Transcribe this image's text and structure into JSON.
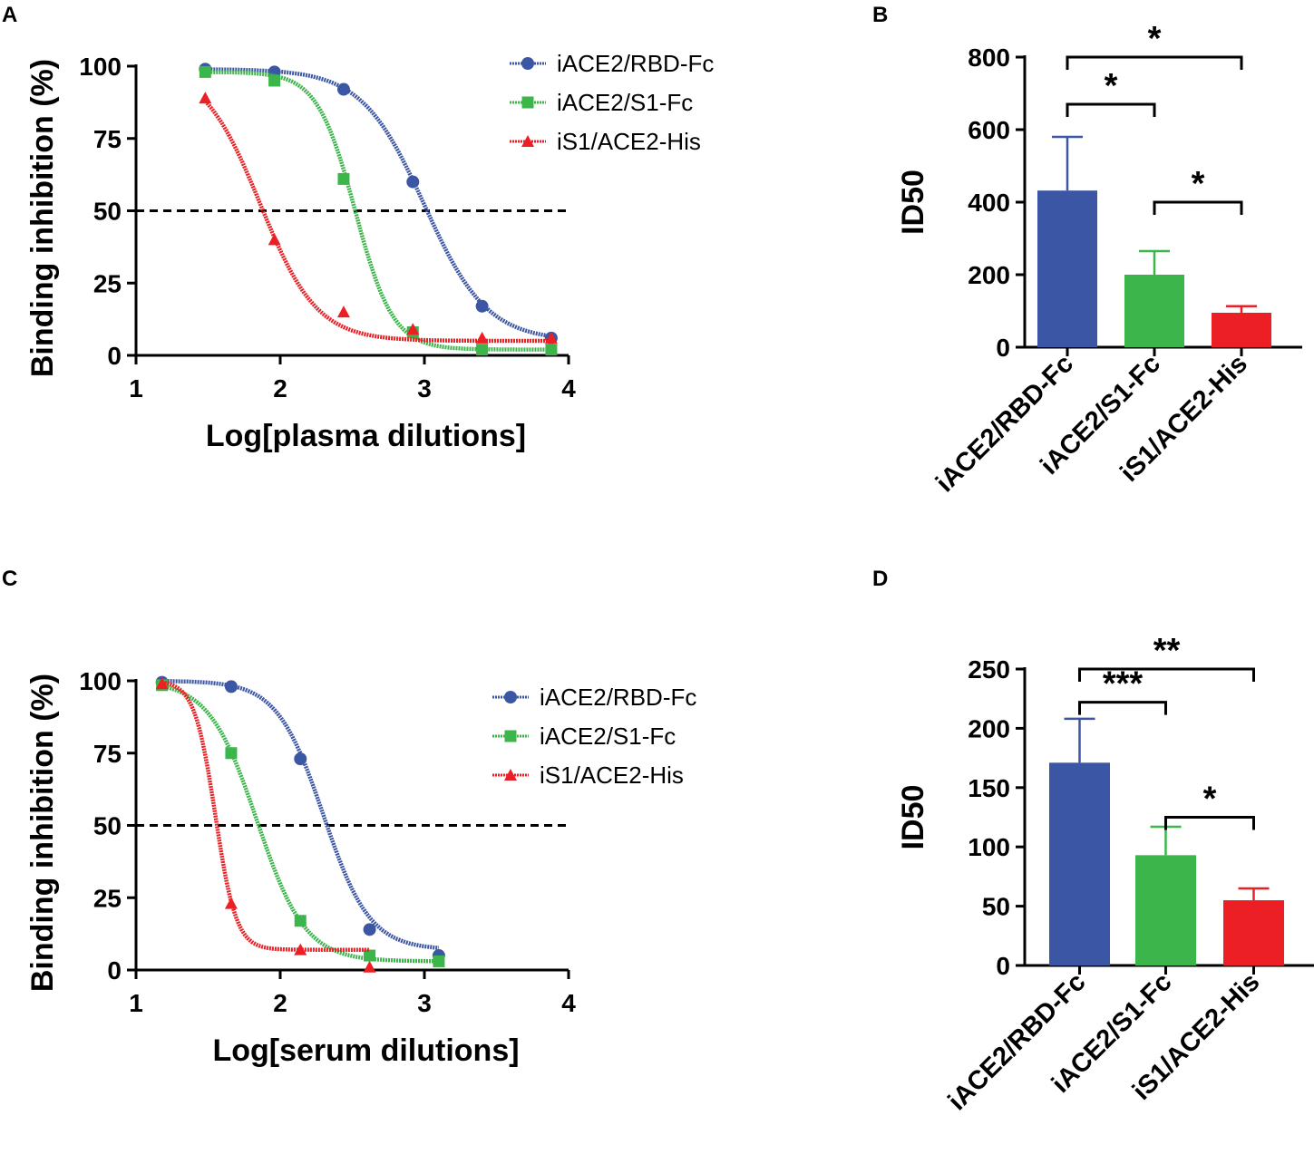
{
  "figure": {
    "colors": {
      "blue": "#3b56a5",
      "green": "#3cb54a",
      "red": "#ec2024"
    },
    "legend_markers": [
      "circle-marker",
      "square-marker",
      "triangle-marker"
    ]
  },
  "chart_data": [
    {
      "panel": "A",
      "type": "line",
      "xlabel": "Log[plasma dilutions]",
      "ylabel": "Binding inhibition (%)",
      "xlim": [
        1,
        4
      ],
      "ylim": [
        0,
        100
      ],
      "xticks": [
        1,
        2,
        3,
        4
      ],
      "yticks": [
        0,
        25,
        50,
        75,
        100
      ],
      "reference_line": {
        "y": 50,
        "style": "dashed"
      },
      "series": [
        {
          "name": "iACE2/RBD-Fc",
          "color": "#3b56a5",
          "marker": "circle",
          "x": [
            1.48,
            1.96,
            2.44,
            2.92,
            3.4,
            3.88
          ],
          "y": [
            99,
            98,
            92,
            60,
            17,
            6
          ],
          "fit": {
            "bottom": 5,
            "top": 99,
            "logIC50": 3.0,
            "hill": 2.0
          }
        },
        {
          "name": "iACE2/S1-Fc",
          "color": "#3cb54a",
          "marker": "square",
          "x": [
            1.48,
            1.96,
            2.44,
            2.92,
            3.4,
            3.88
          ],
          "y": [
            98,
            95,
            61,
            8,
            2,
            2
          ],
          "fit": {
            "bottom": 2,
            "top": 98,
            "logIC50": 2.52,
            "hill": 3.3
          }
        },
        {
          "name": "iS1/ACE2-His",
          "color": "#ec2024",
          "marker": "triangle",
          "x": [
            1.48,
            1.96,
            2.44,
            2.92,
            3.4,
            3.88
          ],
          "y": [
            89,
            40,
            15,
            9,
            6,
            6
          ],
          "fit": {
            "bottom": 5,
            "top": 100,
            "logIC50": 1.86,
            "hill": 2.2
          }
        }
      ]
    },
    {
      "panel": "B",
      "type": "bar",
      "ylabel": "ID50",
      "ylim": [
        0,
        800
      ],
      "yticks": [
        0,
        200,
        400,
        600,
        800
      ],
      "categories": [
        "iACE2/RBD-Fc",
        "iACE2/S1-Fc",
        "iS1/ACE2-His"
      ],
      "values": [
        432,
        200,
        95
      ],
      "errors": [
        148,
        65,
        18
      ],
      "colors": [
        "#3b56a5",
        "#3cb54a",
        "#ec2024"
      ],
      "significance": [
        {
          "from": 0,
          "to": 2,
          "label": "*",
          "y": 800
        },
        {
          "from": 0,
          "to": 1,
          "label": "*",
          "y": 670
        },
        {
          "from": 1,
          "to": 2,
          "label": "*",
          "y": 400
        }
      ]
    },
    {
      "panel": "C",
      "type": "line",
      "xlabel": "Log[serum dilutions]",
      "ylabel": "Binding inhibition (%)",
      "xlim": [
        1,
        4
      ],
      "ylim": [
        0,
        100
      ],
      "xticks": [
        1,
        2,
        3,
        4
      ],
      "yticks": [
        0,
        25,
        50,
        75,
        100
      ],
      "reference_line": {
        "y": 50,
        "style": "dashed"
      },
      "series": [
        {
          "name": "iACE2/RBD-Fc",
          "color": "#3b56a5",
          "marker": "circle",
          "x": [
            1.18,
            1.66,
            2.14,
            2.62,
            3.1
          ],
          "y": [
            99.5,
            98,
            73,
            14,
            5
          ],
          "fit": {
            "bottom": 7,
            "top": 100,
            "logIC50": 2.3,
            "hill": 2.7
          }
        },
        {
          "name": "iACE2/S1-Fc",
          "color": "#3cb54a",
          "marker": "square",
          "x": [
            1.18,
            1.66,
            2.14,
            2.62,
            3.1
          ],
          "y": [
            98.5,
            75,
            17,
            5,
            3
          ],
          "fit": {
            "bottom": 3,
            "top": 100,
            "logIC50": 1.84,
            "hill": 2.6
          }
        },
        {
          "name": "iS1/ACE2-His",
          "color": "#ec2024",
          "marker": "triangle",
          "x": [
            1.18,
            1.66,
            2.14,
            2.62
          ],
          "y": [
            99,
            23,
            7,
            1
          ],
          "fit": {
            "bottom": 7,
            "top": 100,
            "logIC50": 1.55,
            "hill": 6.0,
            "xmax": 2.62
          }
        }
      ]
    },
    {
      "panel": "D",
      "type": "bar",
      "ylabel": "ID50",
      "ylim": [
        0,
        250
      ],
      "yticks": [
        0,
        50,
        100,
        150,
        200,
        250
      ],
      "categories": [
        "iACE2/RBD-Fc",
        "iACE2/S1-Fc",
        "iS1/ACE2-His"
      ],
      "values": [
        171,
        93,
        55
      ],
      "errors": [
        37,
        24,
        10
      ],
      "colors": [
        "#3b56a5",
        "#3cb54a",
        "#ec2024"
      ],
      "significance": [
        {
          "from": 0,
          "to": 2,
          "label": "**",
          "y": 250
        },
        {
          "from": 0,
          "to": 1,
          "label": "***",
          "y": 222
        },
        {
          "from": 1,
          "to": 2,
          "label": "*",
          "y": 125
        }
      ]
    }
  ]
}
